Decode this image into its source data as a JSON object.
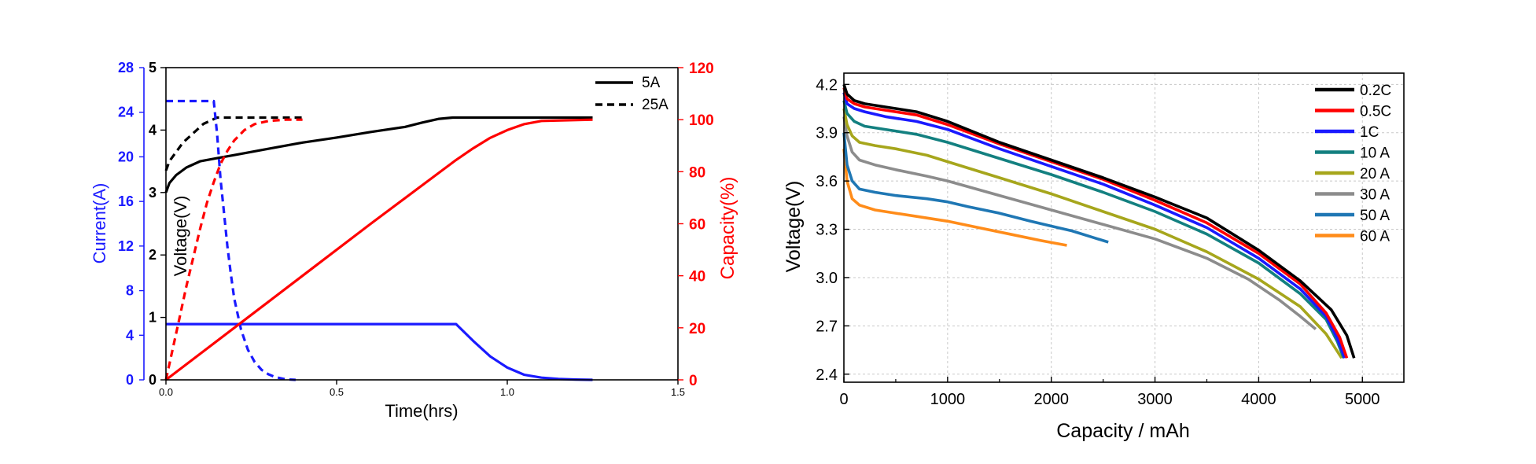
{
  "chart_data": [
    {
      "type": "line",
      "id": "left",
      "xlabel": "Time(hrs)",
      "x_ticks": [
        "0.0",
        "0.5",
        "1.0",
        "1.5"
      ],
      "xlim": [
        0,
        1.5
      ],
      "current_axis": {
        "label": "Current(A)",
        "color": "#1a1aff",
        "ylim": [
          0,
          28
        ],
        "ticks": [
          "0",
          "4",
          "8",
          "12",
          "16",
          "20",
          "24",
          "28"
        ]
      },
      "voltage_axis": {
        "label": "Voltage(V)",
        "color": "#000000",
        "ylim": [
          0,
          5
        ],
        "ticks": [
          "0",
          "1",
          "2",
          "3",
          "4",
          "5"
        ]
      },
      "capacity_axis": {
        "label": "Capacity(%)",
        "color": "#ff0000",
        "ylim": [
          0,
          120
        ],
        "ticks": [
          "0",
          "20",
          "40",
          "60",
          "80",
          "100",
          "120"
        ]
      },
      "legend": {
        "position": "top-right",
        "entries": [
          {
            "label": "5A",
            "style": "solid"
          },
          {
            "label": "25A",
            "style": "dashed"
          }
        ]
      },
      "series": [
        {
          "name": "Voltage 5A",
          "axis": "voltage",
          "color": "#000000",
          "style": "solid",
          "x": [
            0,
            0.01,
            0.03,
            0.06,
            0.1,
            0.15,
            0.2,
            0.3,
            0.4,
            0.5,
            0.6,
            0.7,
            0.75,
            0.8,
            0.84,
            0.9,
            1.0,
            1.1,
            1.25
          ],
          "y": [
            3.0,
            3.15,
            3.28,
            3.4,
            3.5,
            3.55,
            3.6,
            3.7,
            3.8,
            3.88,
            3.97,
            4.05,
            4.12,
            4.18,
            4.2,
            4.2,
            4.2,
            4.2,
            4.2
          ]
        },
        {
          "name": "Voltage 25A",
          "axis": "voltage",
          "color": "#000000",
          "style": "dashed",
          "x": [
            0,
            0.01,
            0.03,
            0.05,
            0.08,
            0.11,
            0.15,
            0.2,
            0.3,
            0.4
          ],
          "y": [
            3.35,
            3.5,
            3.65,
            3.8,
            3.95,
            4.1,
            4.2,
            4.2,
            4.2,
            4.2
          ]
        },
        {
          "name": "Current 5A",
          "axis": "current",
          "color": "#1a1aff",
          "style": "solid",
          "x": [
            0,
            0.3,
            0.6,
            0.85,
            0.86,
            0.9,
            0.95,
            1.0,
            1.05,
            1.1,
            1.15,
            1.2,
            1.25
          ],
          "y": [
            5,
            5,
            5,
            5,
            4.7,
            3.5,
            2.1,
            1.1,
            0.45,
            0.2,
            0.08,
            0.03,
            0
          ]
        },
        {
          "name": "Current 25A",
          "axis": "current",
          "color": "#1a1aff",
          "style": "dashed",
          "x": [
            0,
            0.05,
            0.1,
            0.14,
            0.15,
            0.16,
            0.17,
            0.18,
            0.19,
            0.2,
            0.22,
            0.24,
            0.26,
            0.28,
            0.3,
            0.32,
            0.35,
            0.38
          ],
          "y": [
            25,
            25,
            25,
            25,
            22,
            18,
            15,
            12,
            9.5,
            7.3,
            4.5,
            2.7,
            1.6,
            0.9,
            0.5,
            0.25,
            0.05,
            0
          ]
        },
        {
          "name": "Capacity 5A",
          "axis": "capacity",
          "color": "#ff0000",
          "style": "solid",
          "x": [
            0,
            0.3,
            0.6,
            0.85,
            0.9,
            0.95,
            1.0,
            1.05,
            1.1,
            1.25
          ],
          "y": [
            0,
            30,
            60,
            84.5,
            89,
            93,
            96,
            98.3,
            99.5,
            100
          ]
        },
        {
          "name": "Capacity 25A",
          "axis": "capacity",
          "color": "#ff0000",
          "style": "dashed",
          "x": [
            0,
            0.02,
            0.04,
            0.06,
            0.08,
            0.1,
            0.12,
            0.14,
            0.16,
            0.18,
            0.2,
            0.23,
            0.26,
            0.3,
            0.35,
            0.4
          ],
          "y": [
            0,
            12,
            24,
            36,
            47,
            58,
            68,
            76,
            83,
            88,
            92,
            96,
            98.3,
            99.5,
            100,
            100
          ]
        }
      ]
    },
    {
      "type": "line",
      "id": "right",
      "xlabel": "Capacity / mAh",
      "ylabel": "Voltage(V)",
      "xlim": [
        0,
        5400
      ],
      "ylim": [
        2.35,
        4.27
      ],
      "x_ticks": [
        "0",
        "1000",
        "2000",
        "3000",
        "4000",
        "5000"
      ],
      "y_ticks": [
        "2.4",
        "2.7",
        "3.0",
        "3.3",
        "3.6",
        "3.9",
        "4.2"
      ],
      "grid": true,
      "legend": {
        "position": "top-right"
      },
      "series": [
        {
          "name": "0.2C",
          "color": "#000000",
          "x": [
            0,
            30,
            100,
            200,
            400,
            700,
            1000,
            1500,
            2000,
            2500,
            3000,
            3500,
            4000,
            4400,
            4700,
            4850,
            4920
          ],
          "y": [
            4.2,
            4.14,
            4.1,
            4.08,
            4.06,
            4.03,
            3.97,
            3.84,
            3.73,
            3.62,
            3.5,
            3.37,
            3.17,
            2.98,
            2.8,
            2.64,
            2.5
          ]
        },
        {
          "name": "0.5C",
          "color": "#ff0000",
          "x": [
            0,
            30,
            100,
            200,
            400,
            700,
            1000,
            1500,
            2000,
            2500,
            3000,
            3500,
            4000,
            4400,
            4650,
            4780,
            4850
          ],
          "y": [
            4.18,
            4.11,
            4.08,
            4.06,
            4.04,
            4.01,
            3.95,
            3.83,
            3.72,
            3.61,
            3.48,
            3.34,
            3.15,
            2.96,
            2.78,
            2.63,
            2.5
          ]
        },
        {
          "name": "1C",
          "color": "#1a1aff",
          "x": [
            0,
            30,
            100,
            200,
            400,
            700,
            1000,
            1500,
            2000,
            2500,
            3000,
            3500,
            4000,
            4400,
            4650,
            4760,
            4830
          ],
          "y": [
            4.15,
            4.08,
            4.05,
            4.03,
            4.0,
            3.97,
            3.92,
            3.8,
            3.69,
            3.58,
            3.45,
            3.31,
            3.12,
            2.93,
            2.76,
            2.62,
            2.5
          ]
        },
        {
          "name": "10 A",
          "color": "#138080",
          "x": [
            0,
            30,
            100,
            200,
            400,
            700,
            1000,
            1500,
            2000,
            2500,
            3000,
            3500,
            4000,
            4400,
            4650,
            4760,
            4820
          ],
          "y": [
            4.1,
            4.02,
            3.97,
            3.94,
            3.92,
            3.89,
            3.84,
            3.74,
            3.64,
            3.53,
            3.41,
            3.27,
            3.09,
            2.9,
            2.74,
            2.6,
            2.5
          ]
        },
        {
          "name": "20 A",
          "color": "#a6a61c",
          "x": [
            0,
            30,
            80,
            150,
            300,
            500,
            800,
            1000,
            1500,
            2000,
            2500,
            3000,
            3500,
            4000,
            4400,
            4650,
            4800
          ],
          "y": [
            4.05,
            3.95,
            3.88,
            3.84,
            3.82,
            3.8,
            3.76,
            3.72,
            3.62,
            3.52,
            3.41,
            3.3,
            3.16,
            2.99,
            2.82,
            2.65,
            2.5
          ]
        },
        {
          "name": "30 A",
          "color": "#8c8c8c",
          "x": [
            0,
            30,
            80,
            150,
            300,
            500,
            800,
            1000,
            1500,
            2000,
            2500,
            3000,
            3500,
            3900,
            4200,
            4400,
            4550
          ],
          "y": [
            4.0,
            3.88,
            3.78,
            3.73,
            3.7,
            3.67,
            3.63,
            3.6,
            3.51,
            3.42,
            3.33,
            3.24,
            3.12,
            2.99,
            2.86,
            2.76,
            2.68
          ]
        },
        {
          "name": "50 A",
          "color": "#1f77b4",
          "x": [
            0,
            30,
            80,
            150,
            300,
            500,
            800,
            1000,
            1200,
            1500,
            1800,
            2000,
            2200,
            2400,
            2550
          ],
          "y": [
            3.9,
            3.7,
            3.6,
            3.55,
            3.53,
            3.51,
            3.49,
            3.47,
            3.44,
            3.4,
            3.35,
            3.32,
            3.29,
            3.25,
            3.22
          ]
        },
        {
          "name": "60 A",
          "color": "#ff8c1a",
          "x": [
            0,
            30,
            80,
            150,
            300,
            500,
            800,
            1000,
            1300,
            1600,
            1900,
            2150
          ],
          "y": [
            3.8,
            3.6,
            3.49,
            3.45,
            3.42,
            3.4,
            3.37,
            3.35,
            3.31,
            3.27,
            3.23,
            3.2
          ]
        }
      ]
    }
  ]
}
